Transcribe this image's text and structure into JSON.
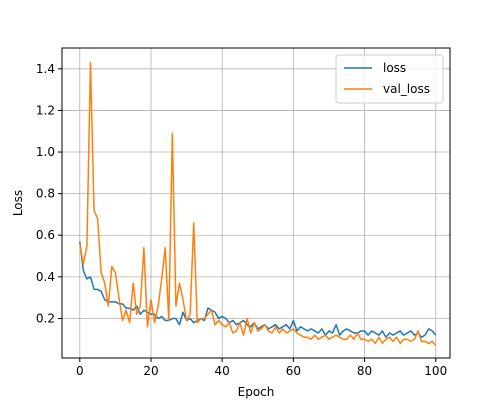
{
  "chart_data": {
    "type": "line",
    "title": "",
    "xlabel": "Epoch",
    "ylabel": "Loss",
    "xlim": [
      -5,
      104
    ],
    "ylim": [
      0.01,
      1.5
    ],
    "xticks": [
      0,
      20,
      40,
      60,
      80,
      100
    ],
    "yticks": [
      0.2,
      0.4,
      0.6,
      0.8,
      1.0,
      1.2,
      1.4
    ],
    "xtick_labels": [
      "0",
      "20",
      "40",
      "60",
      "80",
      "100"
    ],
    "ytick_labels": [
      "0.2",
      "0.4",
      "0.6",
      "0.8",
      "1.0",
      "1.2",
      "1.4"
    ],
    "grid": true,
    "legend_position": "top-right",
    "x": [
      0,
      1,
      2,
      3,
      4,
      5,
      6,
      7,
      8,
      9,
      10,
      11,
      12,
      13,
      14,
      15,
      16,
      17,
      18,
      19,
      20,
      21,
      22,
      23,
      24,
      25,
      26,
      27,
      28,
      29,
      30,
      31,
      32,
      33,
      34,
      35,
      36,
      37,
      38,
      39,
      40,
      41,
      42,
      43,
      44,
      45,
      46,
      47,
      48,
      49,
      50,
      51,
      52,
      53,
      54,
      55,
      56,
      57,
      58,
      59,
      60,
      61,
      62,
      63,
      64,
      65,
      66,
      67,
      68,
      69,
      70,
      71,
      72,
      73,
      74,
      75,
      76,
      77,
      78,
      79,
      80,
      81,
      82,
      83,
      84,
      85,
      86,
      87,
      88,
      89,
      90,
      91,
      92,
      93,
      94,
      95,
      96,
      97,
      98,
      99,
      100
    ],
    "series": [
      {
        "name": "loss",
        "color": "#1f77b4",
        "values": [
          0.57,
          0.43,
          0.39,
          0.4,
          0.34,
          0.34,
          0.33,
          0.29,
          0.28,
          0.28,
          0.28,
          0.27,
          0.27,
          0.25,
          0.25,
          0.24,
          0.26,
          0.22,
          0.24,
          0.23,
          0.22,
          0.22,
          0.2,
          0.21,
          0.19,
          0.19,
          0.2,
          0.2,
          0.17,
          0.23,
          0.19,
          0.2,
          0.18,
          0.19,
          0.2,
          0.19,
          0.25,
          0.24,
          0.23,
          0.2,
          0.21,
          0.2,
          0.18,
          0.19,
          0.17,
          0.18,
          0.19,
          0.17,
          0.16,
          0.18,
          0.15,
          0.16,
          0.17,
          0.15,
          0.16,
          0.17,
          0.15,
          0.16,
          0.17,
          0.15,
          0.19,
          0.14,
          0.16,
          0.15,
          0.14,
          0.15,
          0.14,
          0.13,
          0.15,
          0.12,
          0.14,
          0.13,
          0.17,
          0.12,
          0.14,
          0.15,
          0.14,
          0.13,
          0.13,
          0.14,
          0.14,
          0.12,
          0.14,
          0.13,
          0.12,
          0.14,
          0.11,
          0.13,
          0.12,
          0.13,
          0.14,
          0.12,
          0.13,
          0.14,
          0.12,
          0.13,
          0.11,
          0.12,
          0.15,
          0.14,
          0.12
        ]
      },
      {
        "name": "val_loss",
        "color": "#ff7f0e",
        "values": [
          0.56,
          0.46,
          0.55,
          1.43,
          0.72,
          0.68,
          0.42,
          0.37,
          0.26,
          0.45,
          0.42,
          0.3,
          0.19,
          0.24,
          0.18,
          0.37,
          0.22,
          0.26,
          0.54,
          0.16,
          0.29,
          0.18,
          0.26,
          0.39,
          0.54,
          0.19,
          1.09,
          0.26,
          0.37,
          0.29,
          0.19,
          0.22,
          0.66,
          0.18,
          0.2,
          0.2,
          0.22,
          0.24,
          0.17,
          0.19,
          0.17,
          0.16,
          0.18,
          0.13,
          0.14,
          0.18,
          0.12,
          0.2,
          0.13,
          0.18,
          0.14,
          0.15,
          0.17,
          0.14,
          0.13,
          0.16,
          0.13,
          0.15,
          0.13,
          0.14,
          0.15,
          0.13,
          0.12,
          0.11,
          0.11,
          0.1,
          0.12,
          0.1,
          0.11,
          0.12,
          0.1,
          0.11,
          0.12,
          0.11,
          0.1,
          0.1,
          0.12,
          0.1,
          0.13,
          0.1,
          0.1,
          0.09,
          0.1,
          0.08,
          0.11,
          0.08,
          0.1,
          0.11,
          0.09,
          0.11,
          0.08,
          0.1,
          0.1,
          0.09,
          0.1,
          0.14,
          0.09,
          0.09,
          0.08,
          0.09,
          0.07
        ]
      }
    ]
  }
}
